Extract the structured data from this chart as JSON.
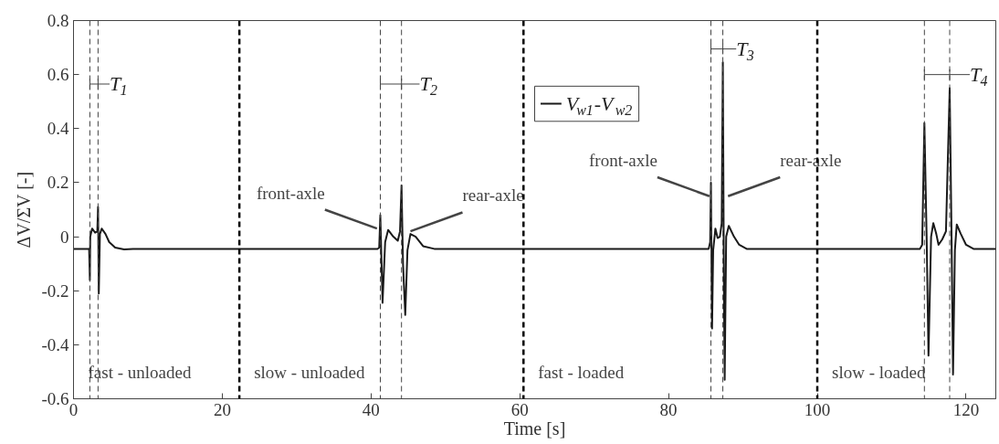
{
  "chart_data": {
    "type": "line",
    "xlabel": "Time [s]",
    "ylabel": "ΔV/ΣV [-]",
    "xlim": [
      0,
      124
    ],
    "ylim": [
      -0.6,
      0.8
    ],
    "xticks": [
      0,
      20,
      40,
      60,
      80,
      100,
      120
    ],
    "yticks": [
      -0.6,
      -0.4,
      -0.2,
      0,
      0.2,
      0.4,
      0.6,
      0.8
    ],
    "legend": "top",
    "series": [
      {
        "name": "V$_{w1}$-V$_{w2}$",
        "color": "#1a1a1a",
        "x": [
          0,
          2.1,
          2.2,
          2.25,
          2.5,
          2.9,
          3.2,
          3.3,
          3.4,
          3.55,
          3.8,
          4.3,
          4.8,
          5.6,
          6.8,
          8,
          40.9,
          41.1,
          41.25,
          41.55,
          41.9,
          42.3,
          43.0,
          43.6,
          43.9,
          44.1,
          44.3,
          44.6,
          44.9,
          45.3,
          46,
          47,
          48.5,
          60,
          85.4,
          85.6,
          85.7,
          85.85,
          86.0,
          86.3,
          86.6,
          86.9,
          87.15,
          87.3,
          87.45,
          87.55,
          87.75,
          88.1,
          88.8,
          89.5,
          90.5,
          91.5,
          100,
          104,
          113.8,
          114.1,
          114.4,
          114.7,
          114.95,
          115.3,
          115.6,
          116.0,
          116.3,
          116.8,
          117.3,
          117.8,
          118.05,
          118.25,
          118.5,
          118.75,
          119.3,
          120,
          121,
          124
        ],
        "values": [
          -0.045,
          -0.045,
          -0.16,
          0.0,
          0.03,
          0.015,
          0.02,
          0.11,
          -0.21,
          0.01,
          0.03,
          0.01,
          -0.02,
          -0.04,
          -0.047,
          -0.045,
          -0.045,
          -0.04,
          0.08,
          -0.245,
          -0.02,
          0.025,
          0.0,
          -0.015,
          0.02,
          0.19,
          -0.1,
          -0.29,
          -0.05,
          0.01,
          0.0,
          -0.035,
          -0.045,
          -0.045,
          -0.045,
          -0.02,
          0.2,
          -0.34,
          -0.05,
          0.03,
          -0.005,
          0.0,
          0.05,
          0.645,
          -0.2,
          -0.53,
          0.0,
          0.04,
          0.0,
          -0.03,
          -0.045,
          -0.045,
          -0.045,
          -0.045,
          -0.045,
          -0.03,
          0.42,
          0.0,
          -0.44,
          0.0,
          0.05,
          0.01,
          -0.03,
          -0.01,
          0.02,
          0.55,
          0.0,
          -0.51,
          -0.05,
          0.045,
          0.01,
          -0.03,
          -0.045,
          -0.045
        ]
      }
    ],
    "ref_lines": [
      {
        "axis": "x",
        "value": 2.2,
        "color": "#444444",
        "line_style": "dashed"
      },
      {
        "axis": "x",
        "value": 3.3,
        "color": "#444444",
        "line_style": "dashed",
        "label": "T$_{1}$"
      },
      {
        "axis": "x",
        "value": 41.25,
        "color": "#444444",
        "line_style": "dashed"
      },
      {
        "axis": "x",
        "value": 44.1,
        "color": "#444444",
        "line_style": "dashed",
        "label": "T$_{2}$"
      },
      {
        "axis": "x",
        "value": 85.7,
        "color": "#444444",
        "line_style": "dashed"
      },
      {
        "axis": "x",
        "value": 87.3,
        "color": "#444444",
        "line_style": "dashed",
        "label": "T$_{3}$"
      },
      {
        "axis": "x",
        "value": 114.4,
        "color": "#444444",
        "line_style": "dashed"
      },
      {
        "axis": "x",
        "value": 117.8,
        "color": "#444444",
        "line_style": "dashed",
        "label": "T$_{4}$"
      },
      {
        "axis": "x",
        "value": 22.3,
        "color": "#000000",
        "line_style": "dashed"
      },
      {
        "axis": "x",
        "value": 60.5,
        "color": "#000000",
        "line_style": "dashed"
      },
      {
        "axis": "x",
        "value": 100,
        "color": "#000000",
        "line_style": "dashed"
      }
    ],
    "annotations": [
      "fast - unloaded",
      "slow - unloaded",
      "fast - loaded",
      "slow - loaded",
      {
        "text": "front-axle",
        "x": 40.8,
        "y": 0.03
      },
      {
        "text": "rear-axle",
        "x": 45.3,
        "y": 0.02
      },
      {
        "text": "front-axle",
        "x": 85.5,
        "y": 0.15
      },
      {
        "text": "rear-axle",
        "x": 88.0,
        "y": 0.15
      }
    ]
  }
}
